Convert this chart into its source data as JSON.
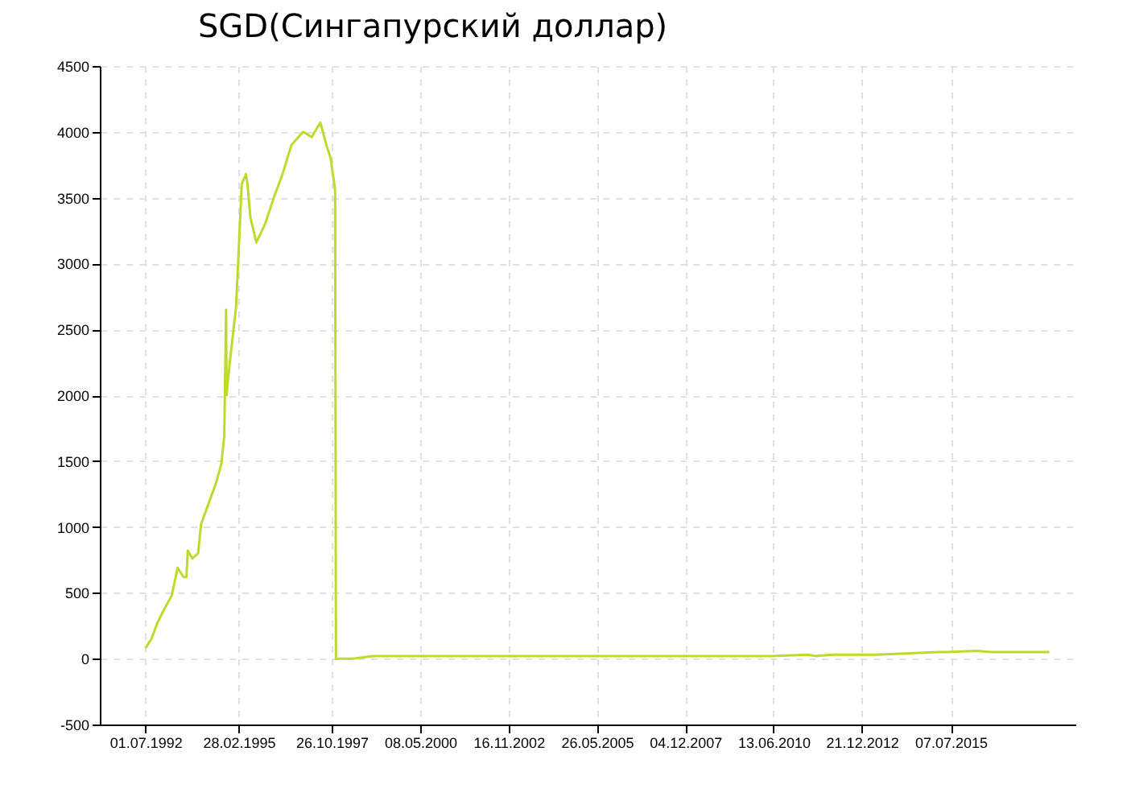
{
  "chart_data": {
    "type": "line",
    "title": "SGD(Сингапурский доллар)",
    "x": [
      "1992-07-01",
      "1992-09-01",
      "1992-11-01",
      "1993-01-01",
      "1993-04-01",
      "1993-06-01",
      "1993-08-01",
      "1993-09-01",
      "1993-09-15",
      "1993-11-01",
      "1994-01-01",
      "1994-02-01",
      "1994-04-01",
      "1994-07-01",
      "1994-09-01",
      "1994-10-01",
      "1994-10-20",
      "1994-10-25",
      "1994-11-01",
      "1994-12-01",
      "1995-02-01",
      "1995-03-01",
      "1995-04-01",
      "1995-05-15",
      "1995-06-01",
      "1995-07-01",
      "1995-09-01",
      "1995-12-01",
      "1996-03-01",
      "1996-06-01",
      "1996-09-01",
      "1997-01-01",
      "1997-04-01",
      "1997-07-01",
      "1997-09-01",
      "1997-10-15",
      "1997-12-01",
      "1997-12-10",
      "1998-06-01",
      "1999-01-01",
      "2000-01-01",
      "2003-01-01",
      "2007-01-01",
      "2010-06-01",
      "2011-06-01",
      "2011-09-01",
      "2012-03-01",
      "2013-06-01",
      "2015-03-01",
      "2015-06-01",
      "2016-04-01",
      "2016-09-01",
      "2017-06-01",
      "2018-05-01"
    ],
    "series": [
      {
        "color": "#bcdc2c",
        "values": [
          80,
          150,
          270,
          360,
          480,
          690,
          620,
          620,
          820,
          760,
          800,
          1020,
          1140,
          1320,
          1480,
          1690,
          2650,
          2000,
          2060,
          2270,
          2670,
          3100,
          3600,
          3680,
          3600,
          3350,
          3160,
          3300,
          3500,
          3680,
          3900,
          4000,
          3960,
          4070,
          3900,
          3800,
          3560,
          0,
          0,
          20,
          20,
          20,
          20,
          20,
          30,
          20,
          30,
          30,
          50,
          50,
          60,
          50,
          50,
          50
        ]
      }
    ],
    "xlim": [
      "1991-03-12",
      "2019-01-29"
    ],
    "xticks": [
      {
        "value": "1992-07-01",
        "label": "01.07.1992"
      },
      {
        "value": "1995-02-28",
        "label": "28.02.1995"
      },
      {
        "value": "1997-10-26",
        "label": "26.10.1997"
      },
      {
        "value": "2000-05-08",
        "label": "08.05.2000"
      },
      {
        "value": "2002-11-16",
        "label": "16.11.2002"
      },
      {
        "value": "2005-05-26",
        "label": "26.05.2005"
      },
      {
        "value": "2007-12-04",
        "label": "04.12.2007"
      },
      {
        "value": "2010-06-13",
        "label": "13.06.2010"
      },
      {
        "value": "2012-12-21",
        "label": "21.12.2012"
      },
      {
        "value": "2015-07-07",
        "label": "07.07.2015"
      }
    ],
    "ylim": [
      -500,
      4500
    ],
    "yticks": [
      -500,
      0,
      500,
      1000,
      1500,
      2000,
      2500,
      3000,
      3500,
      4000,
      4500
    ],
    "grid": true,
    "legend": false
  }
}
